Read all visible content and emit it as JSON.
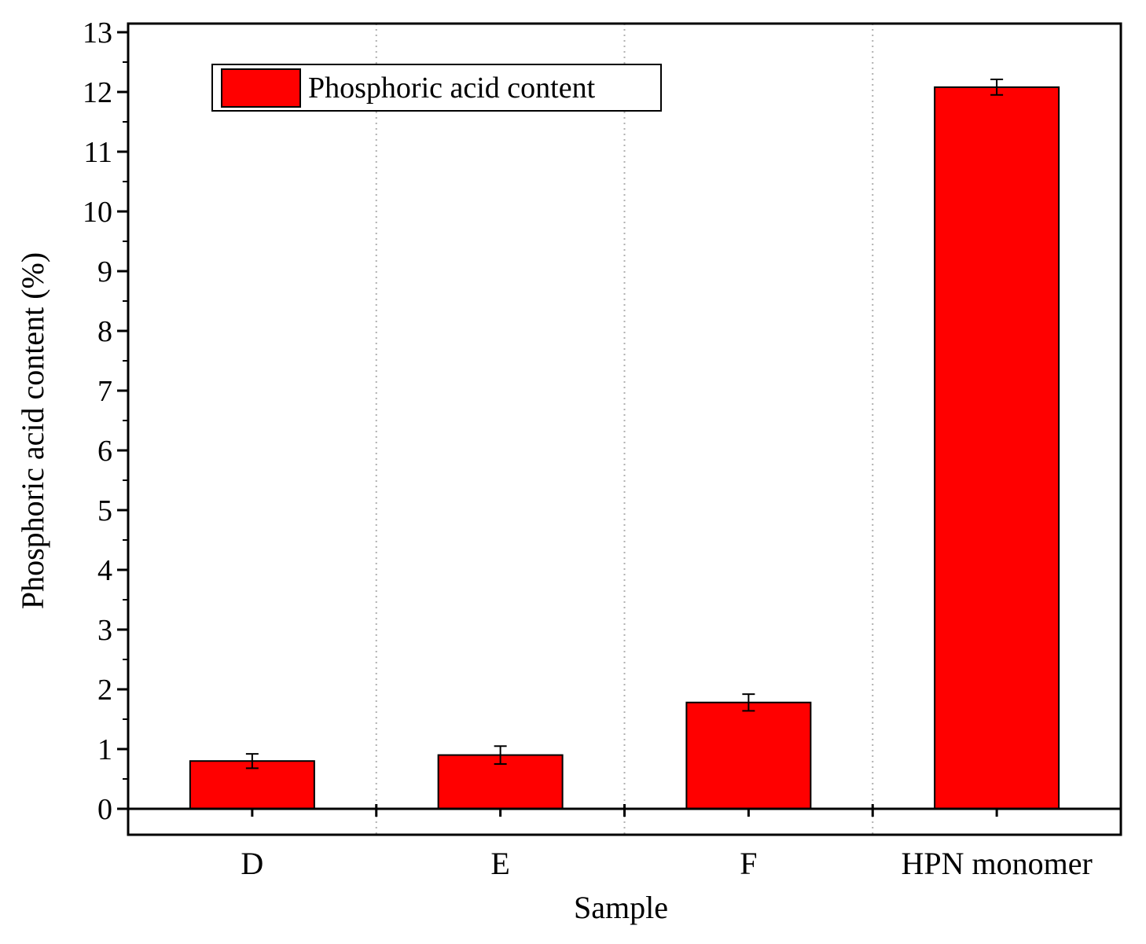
{
  "chart_data": {
    "type": "bar",
    "title": "",
    "xlabel": "Sample",
    "ylabel": "Phosphoric acid content (%)",
    "categories": [
      "D",
      "E",
      "F",
      "HPN monomer"
    ],
    "series": [
      {
        "name": "Phosphoric acid content",
        "values": [
          0.8,
          0.9,
          1.78,
          12.08
        ],
        "errors": [
          0.12,
          0.15,
          0.14,
          0.13
        ],
        "color": "#ff0000"
      }
    ],
    "ylim": [
      0,
      13
    ],
    "yticks": [
      "0",
      "1",
      "2",
      "3",
      "4",
      "5",
      "6",
      "7",
      "8",
      "9",
      "10",
      "11",
      "12",
      "13"
    ],
    "grid": "vertical dotted separators between categories",
    "legend_position": "top-left",
    "colors": {
      "bar_fill": "#ff0000",
      "bar_edge": "#000000",
      "axis": "#000000",
      "grid": "#b0b0b0"
    }
  }
}
